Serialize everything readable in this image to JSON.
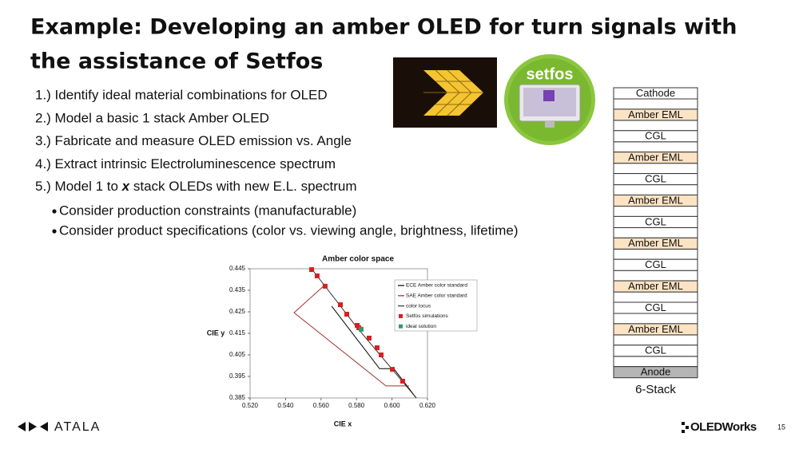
{
  "title": [
    "Example: Developing an amber OLED for turn signals with",
    "the assistance of Setfos"
  ],
  "steps": [
    "1.) Identify ideal material combinations for OLED",
    "2.) Model a basic 1 stack Amber OLED",
    "3.) Fabricate and measure OLED emission vs. Angle",
    "4.) Extract intrinsic Electroluminescence spectrum"
  ],
  "step5": {
    "before": "5.) Model 1 to ",
    "emphasis": "x",
    "after": " stack OLEDs with new E.L. spectrum"
  },
  "bullets": [
    "Consider production constraints (manufacturable)",
    "Consider product specifications (color vs. viewing angle, brightness, lifetime)"
  ],
  "logo_text": "setfos",
  "stack": {
    "layers": [
      "Cathode",
      "Amber EML",
      "CGL",
      "Amber EML",
      "CGL",
      "Amber EML",
      "CGL",
      "Amber EML",
      "CGL",
      "Amber EML",
      "CGL",
      "Amber EML",
      "CGL",
      "Anode"
    ],
    "caption": "6-Stack"
  },
  "footer": {
    "left_logo": "ATALA",
    "right_logo": "OLEDWorks",
    "page": "15"
  },
  "chart_data": {
    "type": "scatter",
    "title": "Amber color space",
    "x_label": "CIE x",
    "y_label": "CIE y",
    "xlim": [
      0.52,
      0.62
    ],
    "ylim": [
      0.385,
      0.445
    ],
    "xticks": [
      {
        "value": 0.52,
        "label": "0.520"
      },
      {
        "value": 0.54,
        "label": "0.540"
      },
      {
        "value": 0.56,
        "label": "0.560"
      },
      {
        "value": 0.58,
        "label": "0.580"
      },
      {
        "value": 0.6,
        "label": "0.600"
      },
      {
        "value": 0.62,
        "label": "0.620"
      }
    ],
    "yticks": [
      0.385,
      0.395,
      0.405,
      0.415,
      0.425,
      0.435,
      0.445
    ],
    "series": [
      {
        "name": "ECE Amber color standard",
        "mode": "line",
        "color": "#000000",
        "x": [
          0.566,
          0.593,
          0.601,
          0.6137
        ],
        "values": [
          0.4276,
          0.3986,
          0.3986,
          0.385
        ]
      },
      {
        "name": "SAE Amber color standard",
        "mode": "line",
        "color": "#a0302a",
        "x": [
          0.5623,
          0.5448,
          0.5966,
          0.6096
        ],
        "values": [
          0.4376,
          0.4246,
          0.3906,
          0.3906
        ]
      },
      {
        "name": "color locus",
        "mode": "line",
        "color": "#333333",
        "x": [
          0.5547,
          0.58,
          0.6137
        ],
        "values": [
          0.445,
          0.418,
          0.385
        ]
      },
      {
        "name": "Setfos simulations",
        "mode": "marker",
        "color": "#d42020",
        "x": [
          0.5547,
          0.5578,
          0.5623,
          0.5709,
          0.5745,
          0.5804,
          0.5813,
          0.5871,
          0.5916,
          0.5939,
          0.6002,
          0.606
        ],
        "values": [
          0.4446,
          0.4417,
          0.4369,
          0.4283,
          0.4239,
          0.4187,
          0.4176,
          0.4128,
          0.4083,
          0.405,
          0.3983,
          0.3928
        ]
      },
      {
        "name": "ideal solution",
        "mode": "marker",
        "color": "#2a9d6a",
        "x": [
          0.5826
        ],
        "values": [
          0.4169
        ]
      }
    ]
  }
}
